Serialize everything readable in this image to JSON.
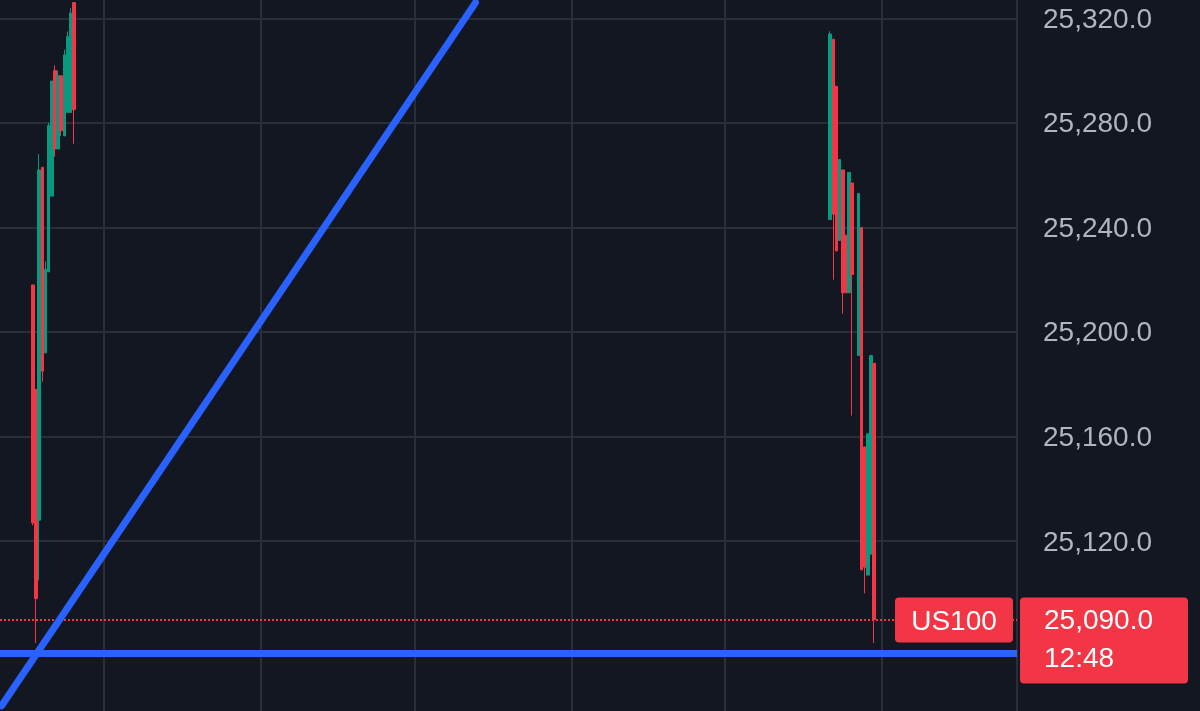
{
  "chart_data": {
    "type": "candlestick",
    "categories": [
      null,
      null,
      null,
      null,
      null,
      null,
      null,
      null,
      null,
      null,
      null,
      null,
      null,
      null,
      null,
      null,
      null,
      null,
      null,
      null,
      null,
      null,
      null,
      null,
      null,
      null,
      null,
      null,
      null,
      null,
      null,
      null,
      null,
      null,
      null,
      null,
      null,
      null,
      null,
      null,
      null,
      null,
      null,
      null,
      null,
      null,
      null,
      null,
      null,
      null,
      null,
      null,
      null,
      null,
      null,
      null,
      null,
      null,
      null,
      null,
      null,
      null,
      null,
      null,
      null,
      null,
      null,
      null,
      null,
      null,
      null,
      null,
      null,
      null,
      null,
      null,
      null,
      null,
      null,
      null,
      null,
      null,
      null,
      null,
      null,
      null,
      null,
      null,
      null,
      null,
      null,
      null,
      null,
      null,
      null,
      null,
      null,
      null,
      null,
      null,
      null,
      null,
      null,
      null,
      null,
      null,
      null,
      null,
      null,
      null,
      null,
      null,
      null,
      null,
      null,
      null,
      null,
      null,
      null,
      null,
      null,
      null,
      null,
      null,
      null,
      null,
      null,
      null,
      null,
      null,
      null,
      null,
      null,
      null,
      null,
      null,
      null,
      null,
      null,
      null,
      null,
      null,
      null,
      null,
      null,
      null,
      null,
      null,
      null,
      null,
      null,
      null,
      null,
      null,
      null,
      null,
      null,
      null,
      null,
      null,
      null,
      null,
      null,
      null,
      null,
      null,
      null,
      null,
      null,
      null,
      null,
      null,
      null,
      null,
      null,
      null,
      null,
      null,
      null,
      null,
      null,
      null,
      null,
      null,
      null,
      null,
      null,
      null,
      null,
      null,
      null,
      null,
      null,
      null,
      null,
      null,
      null,
      null,
      null,
      null,
      null,
      null,
      null,
      null,
      null,
      null,
      null,
      null,
      null,
      null,
      null,
      null,
      null,
      null,
      null,
      null,
      null,
      null,
      null,
      null,
      null,
      null,
      null,
      null,
      null,
      null,
      null,
      null,
      null,
      null,
      null,
      null,
      null,
      null,
      null,
      null,
      null,
      null,
      null,
      null,
      null,
      null,
      null,
      null,
      null,
      null,
      null,
      null,
      null,
      null,
      null,
      null,
      null,
      null,
      null,
      null,
      null,
      null,
      null,
      null,
      null,
      null,
      null,
      null,
      null,
      null,
      null,
      null,
      null,
      null,
      null,
      null,
      null,
      null,
      null,
      null,
      null,
      null,
      null,
      null,
      null,
      null,
      null,
      null,
      null,
      null,
      null,
      null,
      null,
      null,
      null,
      null,
      null,
      null,
      null,
      null,
      null,
      null,
      null,
      null,
      null,
      null,
      null,
      null,
      null,
      null,
      null,
      null,
      null,
      null,
      null,
      null,
      null,
      null,
      null,
      null,
      null,
      null,
      null,
      null,
      null,
      null,
      null,
      null
    ],
    "ohlc": [
      null,
      null,
      null,
      null,
      null,
      null,
      null,
      null,
      null,
      null,
      [
        25218,
        25218,
        25126,
        25127
      ],
      [
        25178,
        25178,
        25081,
        25098
      ],
      [
        25128,
        25268,
        25105,
        25262
      ],
      [
        25263,
        25263,
        25181,
        25185
      ],
      [
        25192,
        25227,
        25192,
        25224
      ],
      [
        25223,
        25280,
        25223,
        25279
      ],
      [
        25252,
        25296,
        25252,
        25296
      ],
      [
        25300,
        25302,
        25267,
        25270
      ],
      [
        25270,
        25300,
        25270,
        25298
      ],
      [
        25298,
        25298,
        25275,
        25277
      ],
      [
        25275,
        25308,
        25275,
        25306
      ],
      [
        25284,
        25315,
        25284,
        25313
      ],
      [
        25284,
        25324,
        25284,
        25322
      ],
      [
        25326,
        25326,
        25272,
        25285
      ],
      null,
      null,
      null,
      null,
      null,
      null,
      null,
      null,
      null,
      null,
      null,
      null,
      null,
      null,
      null,
      null,
      null,
      null,
      null,
      null,
      null,
      null,
      null,
      null,
      null,
      null,
      null,
      null,
      null,
      null,
      null,
      null,
      null,
      null,
      null,
      null,
      null,
      null,
      null,
      null,
      null,
      null,
      null,
      null,
      null,
      null,
      null,
      null,
      null,
      null,
      null,
      null,
      null,
      null,
      null,
      null,
      null,
      null,
      null,
      null,
      null,
      null,
      null,
      null,
      null,
      null,
      null,
      null,
      null,
      null,
      null,
      null,
      null,
      null,
      null,
      null,
      null,
      null,
      null,
      null,
      null,
      null,
      null,
      null,
      null,
      null,
      null,
      null,
      null,
      null,
      null,
      null,
      null,
      null,
      null,
      null,
      null,
      null,
      null,
      null,
      null,
      null,
      null,
      null,
      null,
      null,
      null,
      null,
      null,
      null,
      null,
      null,
      null,
      null,
      null,
      null,
      null,
      null,
      null,
      null,
      null,
      null,
      null,
      null,
      null,
      null,
      null,
      null,
      null,
      null,
      null,
      null,
      null,
      null,
      null,
      null,
      null,
      null,
      null,
      null,
      null,
      null,
      null,
      null,
      null,
      null,
      null,
      null,
      null,
      null,
      null,
      null,
      null,
      null,
      null,
      null,
      null,
      null,
      null,
      null,
      null,
      null,
      null,
      null,
      null,
      null,
      null,
      null,
      null,
      null,
      null,
      null,
      null,
      null,
      null,
      null,
      null,
      null,
      null,
      null,
      null,
      null,
      null,
      null,
      null,
      null,
      null,
      null,
      null,
      null,
      null,
      null,
      null,
      null,
      null,
      null,
      null,
      null,
      null,
      null,
      null,
      null,
      null,
      null,
      null,
      null,
      null,
      null,
      null,
      null,
      null,
      null,
      null,
      null,
      null,
      null,
      null,
      null,
      null,
      null,
      null,
      null,
      null,
      null,
      null,
      null,
      null,
      null,
      null,
      null,
      null,
      null,
      null,
      null,
      null,
      null,
      null,
      null,
      null,
      null,
      [
        25243,
        25315,
        25243,
        25314
      ],
      [
        25312,
        25312,
        25220,
        25245
      ],
      [
        25294,
        25294,
        25231,
        25231
      ],
      [
        25235,
        25266,
        25235,
        25266
      ],
      [
        25262,
        25262,
        25207,
        25215
      ],
      [
        25237,
        25237,
        25215,
        25215
      ],
      [
        25215,
        25261,
        25215,
        25261
      ],
      [
        25257,
        25257,
        25168,
        25222
      ],
      null,
      [
        25191,
        25253,
        25191,
        25253
      ],
      [
        25240,
        25240,
        25109,
        25109
      ],
      [
        25156,
        25156,
        25100,
        25110
      ],
      [
        25107,
        25161,
        25107,
        25161
      ],
      [
        25115,
        25191,
        25115,
        25191
      ],
      [
        25188,
        25188,
        25081,
        25090
      ],
      null,
      null,
      null,
      null,
      null,
      null,
      null,
      null,
      null,
      null,
      null,
      null,
      null,
      null,
      null,
      null,
      null,
      null,
      null,
      null,
      null,
      null,
      null,
      null,
      null,
      null,
      null,
      null,
      null,
      null,
      null,
      null,
      null,
      null,
      null,
      null,
      null,
      null,
      null,
      null,
      null,
      null,
      null,
      null,
      null
    ],
    "series": [
      {
        "type": "line",
        "color": "#2962ff",
        "values": [
          25057,
          null,
          null,
          null,
          null,
          null,
          null,
          null,
          null,
          null,
          null,
          null,
          null,
          null,
          null,
          null,
          null,
          null,
          null,
          null,
          null,
          null,
          null,
          null,
          null,
          null,
          null,
          null,
          null,
          null,
          null,
          null,
          null,
          null,
          null,
          null,
          null,
          null,
          null,
          null,
          null,
          null,
          null,
          null,
          null,
          null,
          null,
          null,
          null,
          null,
          null,
          null,
          null,
          null,
          null,
          null,
          null,
          null,
          null,
          null,
          null,
          null,
          null,
          null,
          null,
          null,
          null,
          null,
          null,
          null,
          null,
          null,
          null,
          null,
          null,
          null,
          null,
          null,
          null,
          null,
          null,
          null,
          null,
          null,
          null,
          null,
          null,
          null,
          null,
          null,
          null,
          null,
          null,
          null,
          null,
          null,
          null,
          null,
          null,
          null,
          null,
          null,
          null,
          null,
          null,
          null,
          null,
          null,
          null,
          null,
          null,
          null,
          null,
          null,
          null,
          null,
          null,
          null,
          null,
          null,
          null,
          null,
          null,
          null,
          null,
          null,
          null,
          null,
          null,
          null,
          null,
          null,
          null,
          null,
          null,
          null,
          null,
          null,
          null,
          null,
          null,
          null,
          null,
          null,
          null,
          null,
          null,
          null,
          null,
          null,
          null,
          25326,
          null,
          null,
          null,
          null,
          null,
          null,
          null,
          null,
          null,
          null,
          null,
          null,
          null,
          null,
          null,
          null,
          null,
          null,
          null,
          null,
          null,
          null,
          null,
          null,
          null,
          null,
          null,
          null,
          null,
          null,
          null,
          null,
          null,
          null,
          null,
          null,
          null,
          null,
          null,
          null,
          null,
          null,
          null,
          null,
          null,
          null,
          null,
          null,
          null,
          null,
          null,
          null,
          null,
          null,
          null,
          null,
          null,
          null,
          null,
          null,
          null,
          null,
          null,
          null,
          null,
          null,
          null,
          null,
          null,
          null,
          null,
          null,
          null,
          null,
          null,
          null,
          null,
          null,
          null,
          null,
          null,
          null,
          null,
          null,
          null,
          null,
          null,
          null,
          null,
          null,
          null,
          null,
          null,
          null,
          null,
          null,
          null,
          null,
          null,
          null,
          null,
          null,
          null,
          null,
          null,
          null,
          null,
          null,
          null,
          null,
          null,
          null,
          null,
          null,
          null,
          null,
          null,
          null,
          null,
          null,
          null,
          null,
          null,
          null,
          null,
          null,
          null,
          null,
          null,
          null,
          null,
          null,
          null,
          null,
          null,
          null,
          null,
          null,
          null,
          null,
          null,
          null,
          null,
          null,
          null,
          null,
          null,
          null,
          null,
          null,
          null,
          null,
          null,
          null,
          null,
          null,
          null,
          null,
          null,
          null,
          null,
          null,
          null,
          null,
          null,
          null,
          null,
          null,
          null,
          null,
          null,
          null
        ]
      }
    ],
    "ylim": [
      25055,
      25327
    ],
    "yticks": [
      {
        "value": 25120,
        "label": "25,120.0"
      },
      {
        "value": 25160,
        "label": "25,160.0"
      },
      {
        "value": 25200,
        "label": "25,200.0"
      },
      {
        "value": 25240,
        "label": "25,240.0"
      },
      {
        "value": 25280,
        "label": "25,280.0"
      },
      {
        "value": 25320,
        "label": "25,320.0"
      }
    ],
    "grid": true,
    "ref_lines": [
      {
        "axis": "y",
        "value": 25090,
        "label": "25,090.0",
        "color": "#f23645",
        "line_style": "dotted"
      },
      {
        "axis": "y",
        "value": 25077,
        "color": "#2962ff",
        "line_style": "solid"
      }
    ],
    "annotations": [
      {
        "text": "US100",
        "y": 25090
      },
      "12:48"
    ]
  }
}
